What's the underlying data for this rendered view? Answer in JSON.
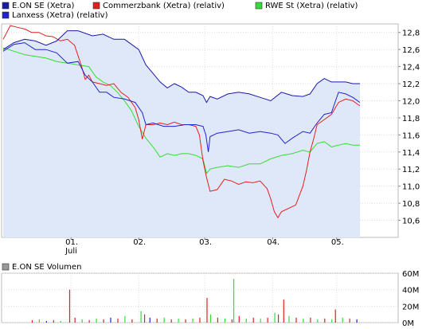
{
  "chart_data": [
    {
      "type": "line",
      "legend": [
        {
          "name": "E.ON SE (Xetra)",
          "color": "#1a1aa6"
        },
        {
          "name": "Commerzbank (Xetra) (relativ)",
          "color": "#e02020"
        },
        {
          "name": "RWE St (Xetra) (relativ)",
          "color": "#33dd33"
        },
        {
          "name": "Lanxess (Xetra) (relativ)",
          "color": "#2222cc"
        }
      ],
      "x_ticks": [
        "01.",
        "02.",
        "03.",
        "04.",
        "05."
      ],
      "x_sublabel": "Juli",
      "y_ticks": [
        "12,8",
        "12,6",
        "12,4",
        "12,2",
        "12,0",
        "11,8",
        "11,6",
        "11,4",
        "11,2",
        "11,0",
        "10,8",
        "10,6"
      ],
      "ylim": [
        10.4,
        12.9
      ],
      "xlim": [
        0,
        100
      ],
      "area_fill": "#dfe8f8",
      "series": [
        {
          "name": "E.ON SE (Xetra)",
          "color": "#1a1aa6",
          "x": [
            0,
            3,
            6,
            9,
            12,
            15,
            18,
            21,
            25,
            28,
            31,
            34,
            38,
            40,
            42,
            44,
            46,
            48,
            50,
            52,
            54,
            56,
            57,
            58,
            60,
            63,
            66,
            69,
            72,
            75,
            78,
            81,
            84,
            86,
            88,
            90,
            92,
            94,
            96,
            98,
            100
          ],
          "y": [
            12.6,
            12.68,
            12.72,
            12.7,
            12.65,
            12.7,
            12.82,
            12.82,
            12.76,
            12.78,
            12.72,
            12.72,
            12.6,
            12.42,
            12.32,
            12.22,
            12.15,
            12.2,
            12.16,
            12.1,
            12.1,
            12.06,
            11.98,
            12.05,
            12.02,
            12.08,
            12.1,
            12.08,
            12.04,
            12.0,
            12.1,
            12.06,
            12.05,
            12.08,
            12.2,
            12.26,
            12.22,
            12.22,
            12.22,
            12.2,
            12.2
          ]
        },
        {
          "name": "Commerzbank (Xetra) (relativ)",
          "color": "#e02020",
          "x": [
            0,
            2,
            4,
            6,
            8,
            10,
            12,
            14,
            16,
            18,
            20,
            22,
            23,
            24,
            25,
            27,
            29,
            31,
            33,
            35,
            37,
            38,
            39,
            40,
            42,
            44,
            46,
            48,
            50,
            52,
            54,
            55,
            56,
            57,
            58,
            60,
            62,
            64,
            66,
            68,
            70,
            72,
            74,
            75,
            76,
            77,
            78,
            80,
            82,
            84,
            85,
            86,
            87,
            88,
            90,
            92,
            94,
            96,
            98,
            100
          ],
          "y": [
            12.72,
            12.88,
            12.86,
            12.84,
            12.8,
            12.8,
            12.76,
            12.75,
            12.7,
            12.72,
            12.65,
            12.4,
            12.25,
            12.3,
            12.22,
            12.2,
            12.18,
            12.2,
            12.1,
            12.04,
            11.92,
            11.78,
            11.55,
            11.72,
            11.72,
            11.74,
            11.72,
            11.75,
            11.72,
            11.72,
            11.7,
            11.6,
            11.3,
            11.1,
            10.94,
            10.96,
            11.08,
            11.06,
            11.02,
            11.05,
            11.04,
            11.06,
            10.97,
            10.85,
            10.7,
            10.63,
            10.7,
            10.74,
            10.78,
            11.0,
            11.18,
            11.4,
            11.55,
            11.72,
            11.78,
            11.84,
            11.98,
            12.02,
            12.0,
            11.94
          ]
        },
        {
          "name": "RWE St (Xetra) (relativ)",
          "color": "#33dd33",
          "x": [
            0,
            3,
            6,
            9,
            12,
            15,
            18,
            21,
            24,
            26,
            28,
            30,
            32,
            34,
            36,
            38,
            40,
            42,
            44,
            46,
            48,
            50,
            52,
            54,
            56,
            57,
            58,
            60,
            63,
            66,
            69,
            72,
            75,
            78,
            81,
            84,
            86,
            88,
            90,
            92,
            94,
            96,
            98,
            100
          ],
          "y": [
            12.62,
            12.58,
            12.54,
            12.52,
            12.5,
            12.46,
            12.44,
            12.42,
            12.4,
            12.28,
            12.22,
            12.18,
            12.1,
            12.0,
            11.88,
            11.7,
            11.56,
            11.46,
            11.34,
            11.38,
            11.36,
            11.38,
            11.38,
            11.36,
            11.32,
            11.15,
            11.2,
            11.22,
            11.24,
            11.22,
            11.26,
            11.26,
            11.32,
            11.36,
            11.38,
            11.42,
            11.4,
            11.5,
            11.52,
            11.46,
            11.48,
            11.5,
            11.48,
            11.48
          ]
        },
        {
          "name": "Lanxess (Xetra) (relativ)",
          "color": "#2222cc",
          "x": [
            0,
            3,
            6,
            9,
            12,
            15,
            18,
            21,
            23,
            25,
            27,
            29,
            31,
            34,
            37,
            39,
            40,
            42,
            45,
            48,
            51,
            54,
            56,
            56.8,
            57.5,
            58,
            60,
            63,
            66,
            69,
            72,
            75,
            77,
            79,
            81,
            84,
            86,
            88,
            90,
            92,
            94,
            96,
            98,
            100
          ],
          "y": [
            12.58,
            12.66,
            12.68,
            12.6,
            12.6,
            12.56,
            12.44,
            12.46,
            12.3,
            12.22,
            12.1,
            12.1,
            12.04,
            12.02,
            11.98,
            11.86,
            11.72,
            11.74,
            11.7,
            11.7,
            11.72,
            11.72,
            11.7,
            11.6,
            11.4,
            11.58,
            11.62,
            11.64,
            11.66,
            11.62,
            11.64,
            11.62,
            11.6,
            11.5,
            11.56,
            11.64,
            11.62,
            11.74,
            11.84,
            11.86,
            12.1,
            12.08,
            12.04,
            11.98
          ]
        }
      ]
    },
    {
      "type": "bar",
      "legend": [
        {
          "name": "E.ON SE Volumen",
          "color": "#999999"
        }
      ],
      "y_ticks": [
        "60M",
        "40M",
        "20M",
        "0M"
      ],
      "ylim": [
        0,
        60
      ],
      "bars": [
        {
          "x": 18.5,
          "value": 40,
          "color": "#e02020"
        },
        {
          "x": 8,
          "value": 3,
          "color": "#e02020"
        },
        {
          "x": 10,
          "value": 4,
          "color": "#33dd33"
        },
        {
          "x": 12,
          "value": 2,
          "color": "#2222cc"
        },
        {
          "x": 14,
          "value": 3,
          "color": "#e02020"
        },
        {
          "x": 16,
          "value": 2,
          "color": "#33dd33"
        },
        {
          "x": 20,
          "value": 6,
          "color": "#e02020"
        },
        {
          "x": 22,
          "value": 4,
          "color": "#33dd33"
        },
        {
          "x": 24,
          "value": 3,
          "color": "#e02020"
        },
        {
          "x": 26,
          "value": 5,
          "color": "#33dd33"
        },
        {
          "x": 28,
          "value": 4,
          "color": "#e02020"
        },
        {
          "x": 30,
          "value": 6,
          "color": "#2222cc"
        },
        {
          "x": 32,
          "value": 5,
          "color": "#e02020"
        },
        {
          "x": 34,
          "value": 8,
          "color": "#33dd33"
        },
        {
          "x": 36,
          "value": 4,
          "color": "#e02020"
        },
        {
          "x": 38.5,
          "value": 14,
          "color": "#33dd33"
        },
        {
          "x": 39.5,
          "value": 10,
          "color": "#e02020"
        },
        {
          "x": 41,
          "value": 6,
          "color": "#2222cc"
        },
        {
          "x": 43,
          "value": 5,
          "color": "#e02020"
        },
        {
          "x": 45,
          "value": 6,
          "color": "#33dd33"
        },
        {
          "x": 47,
          "value": 4,
          "color": "#e02020"
        },
        {
          "x": 49,
          "value": 5,
          "color": "#33dd33"
        },
        {
          "x": 51,
          "value": 4,
          "color": "#e02020"
        },
        {
          "x": 53,
          "value": 5,
          "color": "#33dd33"
        },
        {
          "x": 55,
          "value": 6,
          "color": "#e02020"
        },
        {
          "x": 57,
          "value": 30,
          "color": "#e02020"
        },
        {
          "x": 58,
          "value": 10,
          "color": "#33dd33"
        },
        {
          "x": 60,
          "value": 6,
          "color": "#e02020"
        },
        {
          "x": 62,
          "value": 5,
          "color": "#33dd33"
        },
        {
          "x": 64,
          "value": 4,
          "color": "#e02020"
        },
        {
          "x": 64.5,
          "value": 53,
          "color": "#33dd33"
        },
        {
          "x": 66,
          "value": 8,
          "color": "#e02020"
        },
        {
          "x": 68,
          "value": 5,
          "color": "#33dd33"
        },
        {
          "x": 70,
          "value": 6,
          "color": "#e02020"
        },
        {
          "x": 72,
          "value": 5,
          "color": "#33dd33"
        },
        {
          "x": 74,
          "value": 6,
          "color": "#e02020"
        },
        {
          "x": 76,
          "value": 12,
          "color": "#33dd33"
        },
        {
          "x": 77,
          "value": 10,
          "color": "#e02020"
        },
        {
          "x": 78.5,
          "value": 28,
          "color": "#e02020"
        },
        {
          "x": 80,
          "value": 8,
          "color": "#33dd33"
        },
        {
          "x": 82,
          "value": 6,
          "color": "#e02020"
        },
        {
          "x": 84,
          "value": 5,
          "color": "#33dd33"
        },
        {
          "x": 86,
          "value": 6,
          "color": "#e02020"
        },
        {
          "x": 88,
          "value": 4,
          "color": "#33dd33"
        },
        {
          "x": 90,
          "value": 5,
          "color": "#e02020"
        },
        {
          "x": 92,
          "value": 4,
          "color": "#33dd33"
        },
        {
          "x": 93,
          "value": 16,
          "color": "#e02020"
        },
        {
          "x": 95,
          "value": 6,
          "color": "#33dd33"
        },
        {
          "x": 97,
          "value": 5,
          "color": "#e02020"
        },
        {
          "x": 99,
          "value": 4,
          "color": "#2222cc"
        }
      ]
    }
  ]
}
